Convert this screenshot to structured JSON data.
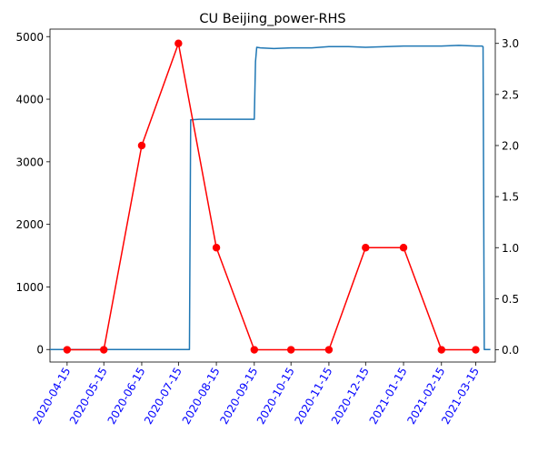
{
  "chart_data": {
    "type": "line",
    "title": "CU Beijing_power-RHS",
    "xlabel": "",
    "ylabel": "",
    "grid": false,
    "legend": "none",
    "x_tick_labels": [
      "2020-04-15",
      "2020-05-15",
      "2020-06-15",
      "2020-07-15",
      "2020-08-15",
      "2020-09-15",
      "2020-10-15",
      "2020-11-15",
      "2020-12-15",
      "2021-01-15",
      "2021-02-15",
      "2021-03-15"
    ],
    "x_tick_color": "#0000ff",
    "xlim": [
      "2020-04-01",
      "2021-03-31"
    ],
    "y_left": {
      "ylim": [
        -200,
        5120
      ],
      "ticks": [
        0,
        1000,
        2000,
        3000,
        4000,
        5000
      ]
    },
    "y_right": {
      "ylim": [
        -0.12,
        3.14
      ],
      "ticks": [
        0.0,
        0.5,
        1.0,
        1.5,
        2.0,
        2.5,
        3.0
      ],
      "tick_labels": [
        "0.0",
        "0.5",
        "1.0",
        "1.5",
        "2.0",
        "2.5",
        "3.0"
      ]
    },
    "series": [
      {
        "axis": "left",
        "color": "#1f77b4",
        "marker": "none",
        "x": [
          "2020-04-01",
          "2020-07-24",
          "2020-07-25",
          "2020-08-01",
          "2020-08-15",
          "2020-09-01",
          "2020-09-15",
          "2020-09-16",
          "2020-09-17",
          "2020-09-20",
          "2020-10-01",
          "2020-10-15",
          "2020-11-01",
          "2020-11-15",
          "2020-12-01",
          "2020-12-15",
          "2021-01-01",
          "2021-01-15",
          "2021-02-01",
          "2021-02-15",
          "2021-03-01",
          "2021-03-15",
          "2021-03-20",
          "2021-03-21",
          "2021-03-22",
          "2021-03-27"
        ],
        "values": [
          0,
          0,
          3670,
          3680,
          3680,
          3680,
          3680,
          4600,
          4830,
          4820,
          4810,
          4820,
          4820,
          4840,
          4840,
          4830,
          4840,
          4850,
          4850,
          4850,
          4860,
          4850,
          4850,
          4840,
          0,
          0
        ]
      },
      {
        "axis": "right",
        "color": "#ff0000",
        "marker": "circle",
        "x": [
          "2020-04-15",
          "2020-05-15",
          "2020-06-15",
          "2020-07-15",
          "2020-08-15",
          "2020-09-15",
          "2020-10-15",
          "2020-11-15",
          "2020-12-15",
          "2021-01-15",
          "2021-02-15",
          "2021-03-15"
        ],
        "values": [
          0,
          0,
          2,
          3,
          1,
          0,
          0,
          0,
          1,
          1,
          0,
          0
        ]
      }
    ]
  }
}
